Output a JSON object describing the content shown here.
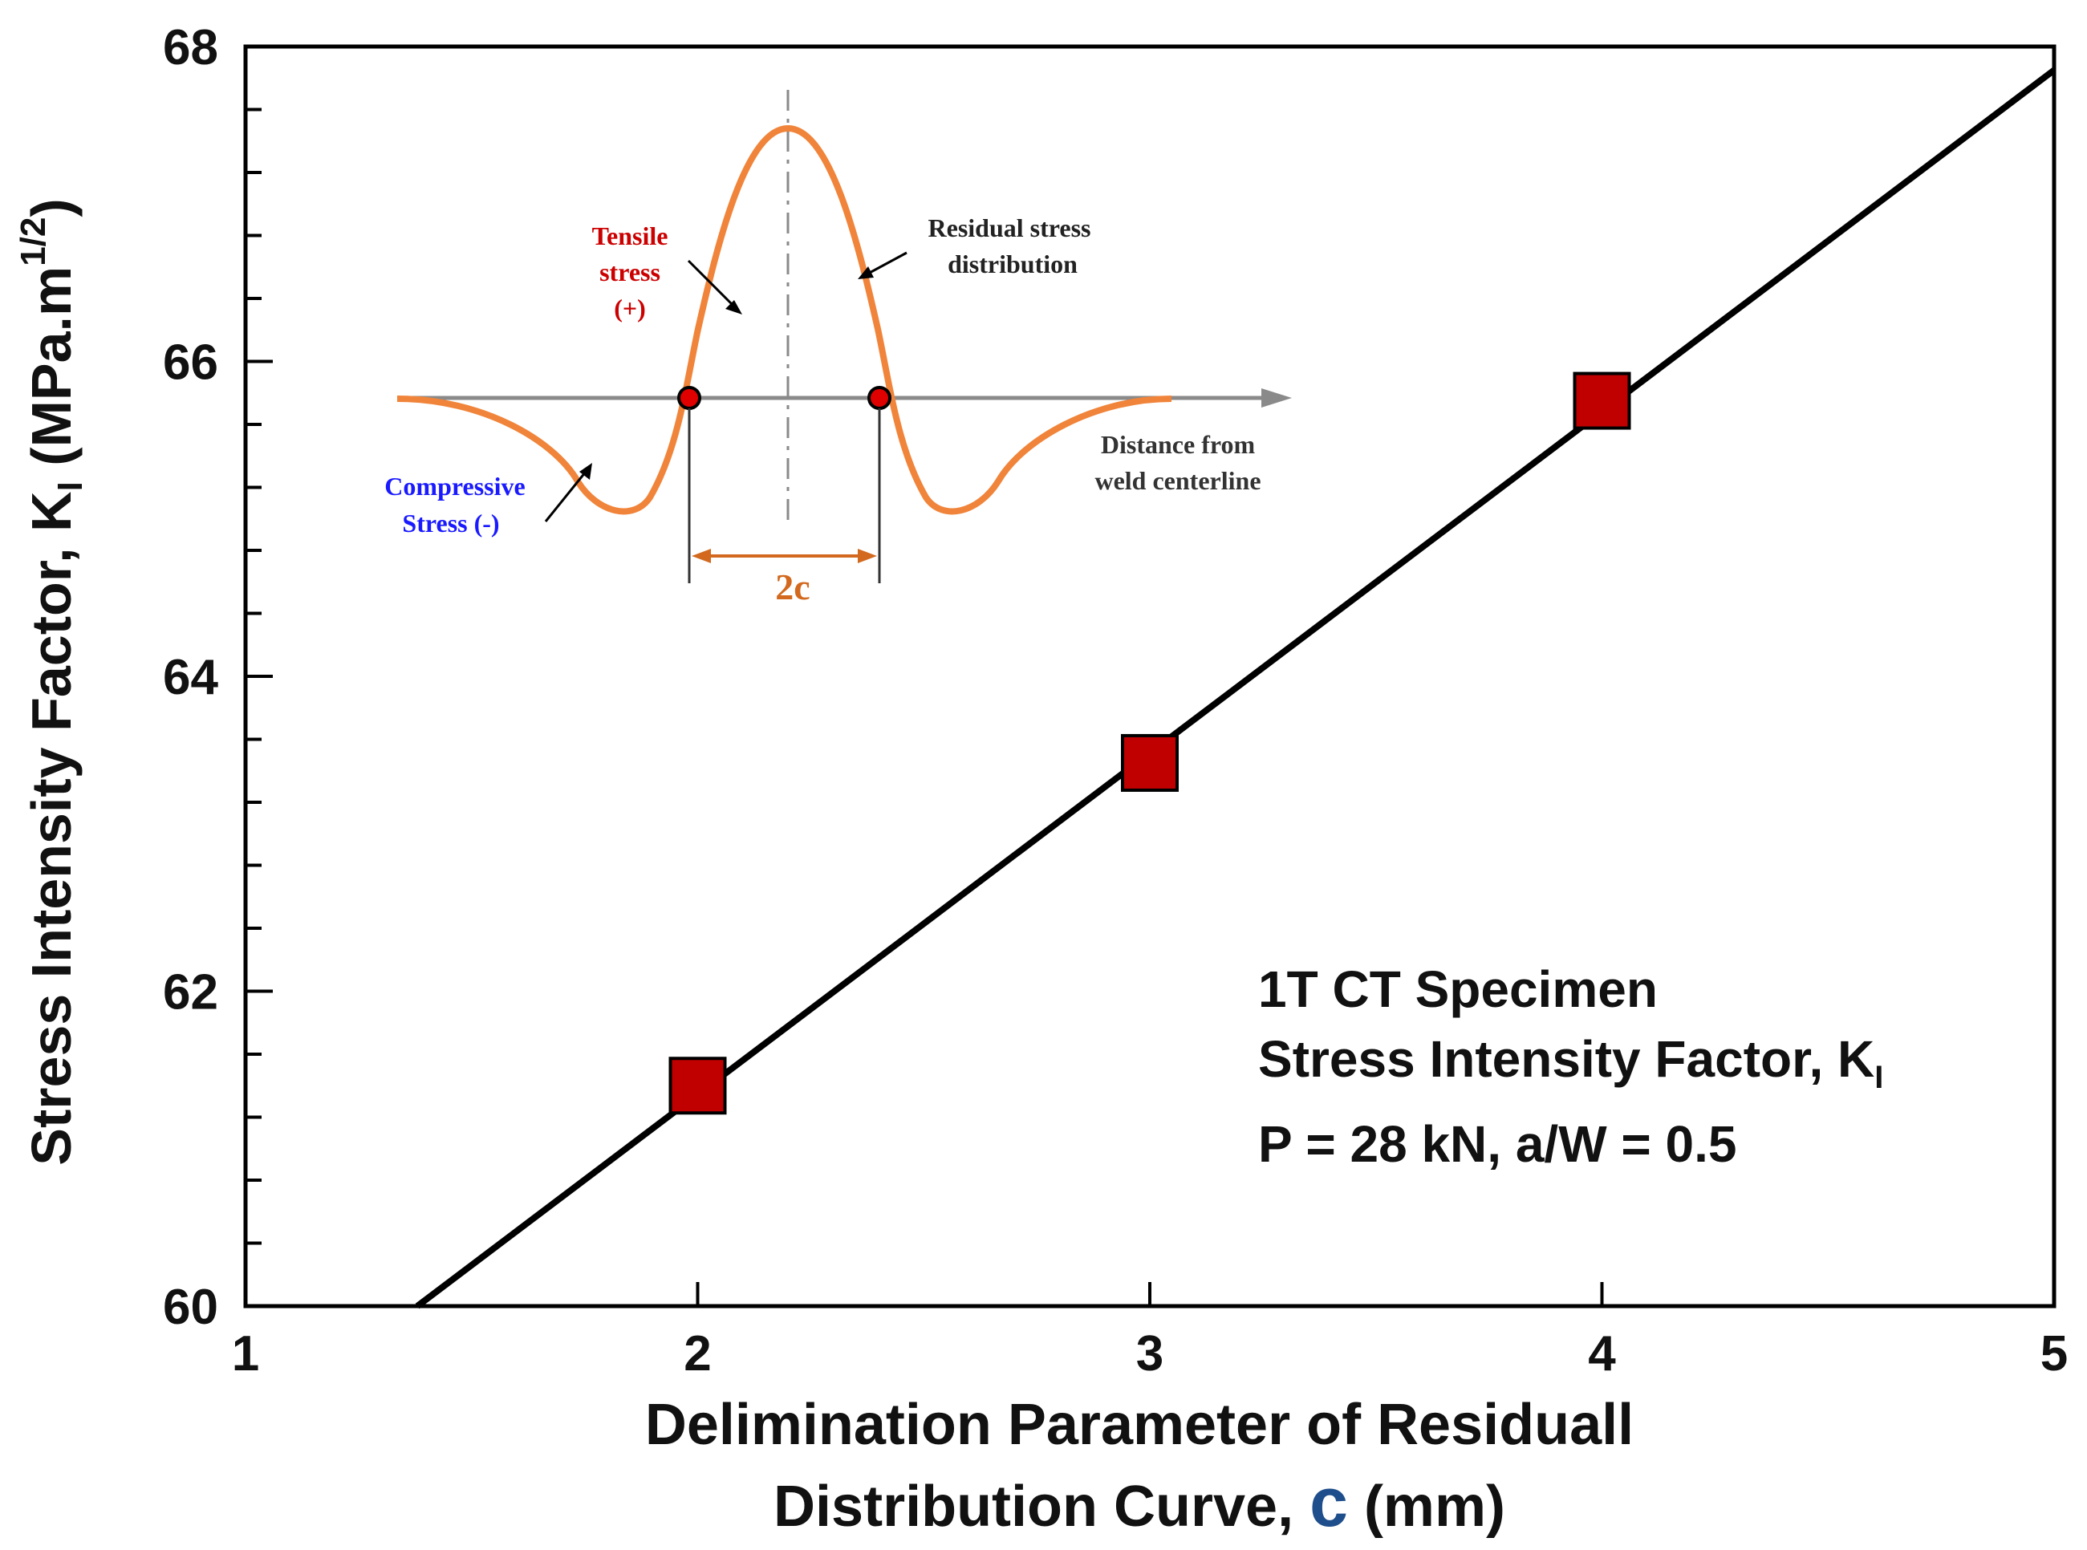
{
  "chart_data": {
    "type": "scatter",
    "title": "",
    "xlabel_line1": "Delimination Parameter of Residuall",
    "xlabel_line2_prefix": "Distribution Curve, ",
    "xlabel_symbol": "c",
    "xlabel_line2_suffix": " (mm)",
    "ylabel_main": "Stress Intensity Factor, K",
    "ylabel_sub": "I",
    "ylabel_unit": " (MPa.m",
    "ylabel_sup": "1/2",
    "ylabel_close": ")",
    "xlim": [
      1,
      5
    ],
    "ylim": [
      60,
      68
    ],
    "x_ticks": [
      1,
      2,
      3,
      4,
      5
    ],
    "y_ticks": [
      60,
      62,
      64,
      66,
      68
    ],
    "x_minor_step": 1,
    "y_minor_step": 0.4,
    "series": [
      {
        "name": "K_I data",
        "marker": "square",
        "color": "#c00000",
        "x": [
          2,
          3,
          4
        ],
        "y": [
          61.4,
          63.45,
          65.75
        ]
      }
    ],
    "fit_line": {
      "x": [
        1.38,
        5
      ],
      "y": [
        60,
        67.85
      ],
      "color": "#000000"
    },
    "annotation": {
      "line1": "1T CT Specimen",
      "line2": "Stress Intensity Factor, K",
      "line2_sub": "I",
      "line3": "P = 28 kN, a/W = 0.5"
    },
    "inset": {
      "tensile_lines": [
        "Tensile",
        "stress",
        "(+)"
      ],
      "residual_lines": [
        "Residual stress",
        "distribution"
      ],
      "compressive_lines": [
        "Compressive",
        "Stress (-)"
      ],
      "distance_lines": [
        "Distance from",
        "weld centerline"
      ],
      "width_label": "2c",
      "curve_color": "#f0843a",
      "tensile_color": "#cc0000",
      "compressive_color": "#1a1aff",
      "dim_color": "#d2691e"
    }
  }
}
